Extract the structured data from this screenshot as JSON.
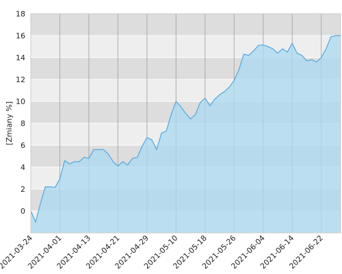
{
  "chart_data": {
    "type": "area",
    "y_label": "[Zmiany %]",
    "categories": [
      "2021-03-24",
      null,
      null,
      null,
      null,
      null,
      "2021-04-01",
      null,
      null,
      null,
      null,
      null,
      "2021-04-13",
      null,
      null,
      null,
      null,
      null,
      "2021-04-21",
      null,
      null,
      null,
      null,
      null,
      "2021-04-29",
      null,
      null,
      null,
      null,
      null,
      "2021-05-10",
      null,
      null,
      null,
      null,
      null,
      "2021-05-18",
      null,
      null,
      null,
      null,
      null,
      "2021-05-26",
      null,
      null,
      null,
      null,
      null,
      "2021-06-04",
      null,
      null,
      null,
      null,
      null,
      "2021-06-14",
      null,
      null,
      null,
      null,
      null,
      "2021-06-22",
      null,
      null,
      null,
      null
    ],
    "values": [
      0,
      -1.0,
      0.7,
      2.2,
      2.2,
      2.15,
      2.9,
      4.6,
      4.3,
      4.5,
      4.5,
      4.9,
      4.8,
      5.6,
      5.6,
      5.6,
      5.2,
      4.5,
      4.1,
      4.5,
      4.2,
      4.8,
      4.9,
      5.9,
      6.7,
      6.5,
      5.6,
      7.1,
      7.3,
      8.8,
      10.0,
      9.5,
      8.9,
      8.4,
      8.8,
      9.9,
      10.3,
      9.6,
      10.2,
      10.6,
      10.9,
      11.3,
      11.9,
      12.9,
      14.3,
      14.2,
      14.6,
      15.1,
      15.15,
      15.0,
      14.8,
      14.4,
      14.8,
      14.5,
      15.3,
      14.4,
      14.2,
      13.7,
      13.8,
      13.6,
      14.0,
      14.8,
      15.9,
      16.0,
      16.0
    ],
    "color": "#5aaae0",
    "fill": "#a9daf0",
    "ylim": [
      -2,
      18
    ],
    "yticks": [
      0,
      2,
      4,
      6,
      8,
      10,
      12,
      14,
      16,
      18
    ],
    "grid": true
  }
}
